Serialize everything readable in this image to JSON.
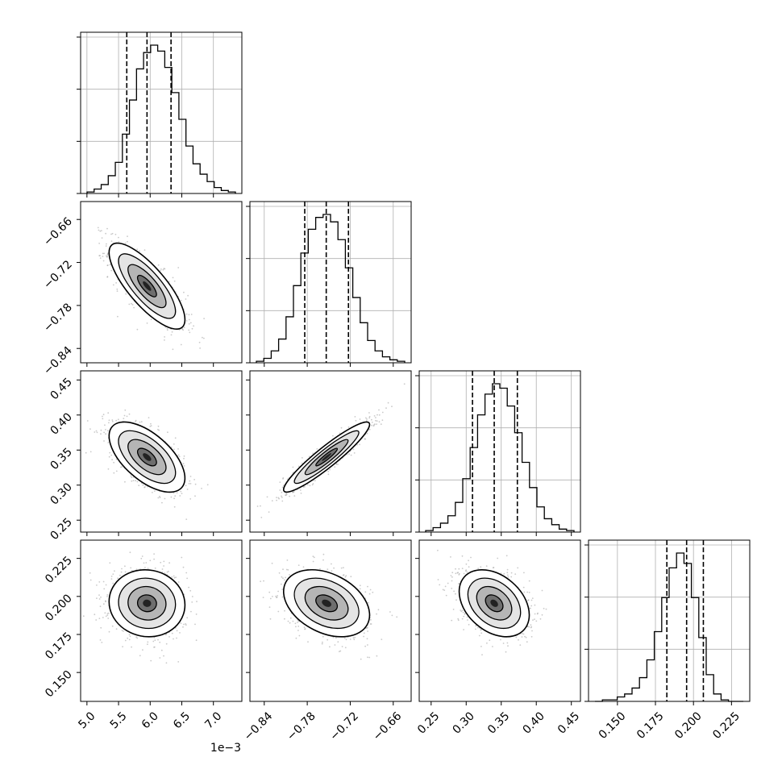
{
  "chart_data": {
    "type": "corner",
    "style": {
      "hist_color": "#000000",
      "quantile_line_color": "#000000",
      "sample_point_color": "#9e9e9e",
      "grid": true,
      "grid_color": "#b0b0b0"
    },
    "axis_offset_label": "1e−3",
    "parameters": [
      {
        "range": [
          4.9,
          7.45
        ],
        "ticks": [
          5.0,
          5.5,
          6.0,
          6.5,
          7.0
        ],
        "tick_labels": [
          "5.0",
          "5.5",
          "6.0",
          "6.5",
          "7.0"
        ],
        "quantiles": [
          5.63,
          5.95,
          6.33
        ],
        "histogram": [
          0.01,
          0.03,
          0.06,
          0.12,
          0.21,
          0.4,
          0.63,
          0.84,
          0.95,
          1.0,
          0.96,
          0.85,
          0.68,
          0.5,
          0.32,
          0.2,
          0.13,
          0.08,
          0.04,
          0.02,
          0.01
        ]
      },
      {
        "range": [
          -0.86,
          -0.635
        ],
        "ticks": [
          -0.84,
          -0.78,
          -0.72,
          -0.66
        ],
        "tick_labels": [
          "−0.84",
          "−0.78",
          "−0.72",
          "−0.66"
        ],
        "quantiles": [
          -0.7835,
          -0.7535,
          -0.7225
        ],
        "histogram": [
          0.01,
          0.03,
          0.08,
          0.16,
          0.31,
          0.52,
          0.74,
          0.9,
          0.98,
          1.0,
          0.95,
          0.83,
          0.64,
          0.44,
          0.27,
          0.15,
          0.08,
          0.04,
          0.02,
          0.01
        ]
      },
      {
        "range": [
          0.233,
          0.463
        ],
        "ticks": [
          0.25,
          0.3,
          0.35,
          0.4,
          0.45
        ],
        "tick_labels": [
          "0.25",
          "0.30",
          "0.35",
          "0.40",
          "0.45"
        ],
        "quantiles": [
          0.309,
          0.34,
          0.373
        ],
        "histogram": [
          0.01,
          0.03,
          0.06,
          0.11,
          0.2,
          0.36,
          0.57,
          0.79,
          0.93,
          1.0,
          0.97,
          0.85,
          0.67,
          0.47,
          0.3,
          0.17,
          0.09,
          0.05,
          0.02,
          0.01
        ]
      },
      {
        "range": [
          0.131,
          0.237
        ],
        "ticks": [
          0.15,
          0.175,
          0.2,
          0.225
        ],
        "tick_labels": [
          "0.150",
          "0.175",
          "0.200",
          "0.225"
        ],
        "quantiles": [
          0.1825,
          0.1955,
          0.2065
        ],
        "histogram": [
          0.0,
          0.01,
          0.01,
          0.03,
          0.05,
          0.09,
          0.16,
          0.28,
          0.47,
          0.7,
          0.9,
          1.0,
          0.93,
          0.7,
          0.43,
          0.18,
          0.05,
          0.01,
          0.0,
          0.0
        ]
      }
    ],
    "pairs": [
      {
        "x_param": 0,
        "y_param": 1,
        "mean": [
          5.95,
          -0.753
        ],
        "std": [
          0.3,
          0.03
        ],
        "corr": -0.78
      },
      {
        "x_param": 0,
        "y_param": 2,
        "mean": [
          5.95,
          0.34
        ],
        "std": [
          0.3,
          0.025
        ],
        "corr": -0.6
      },
      {
        "x_param": 1,
        "y_param": 2,
        "mean": [
          -0.753,
          0.34
        ],
        "std": [
          0.03,
          0.025
        ],
        "corr": 0.93
      },
      {
        "x_param": 0,
        "y_param": 3,
        "mean": [
          5.95,
          0.1955
        ],
        "std": [
          0.3,
          0.011
        ],
        "corr": -0.05
      },
      {
        "x_param": 1,
        "y_param": 3,
        "mean": [
          -0.753,
          0.1955
        ],
        "std": [
          0.03,
          0.011
        ],
        "corr": -0.35
      },
      {
        "x_param": 2,
        "y_param": 3,
        "mean": [
          0.34,
          0.1955
        ],
        "std": [
          0.025,
          0.011
        ],
        "corr": -0.35
      }
    ]
  }
}
